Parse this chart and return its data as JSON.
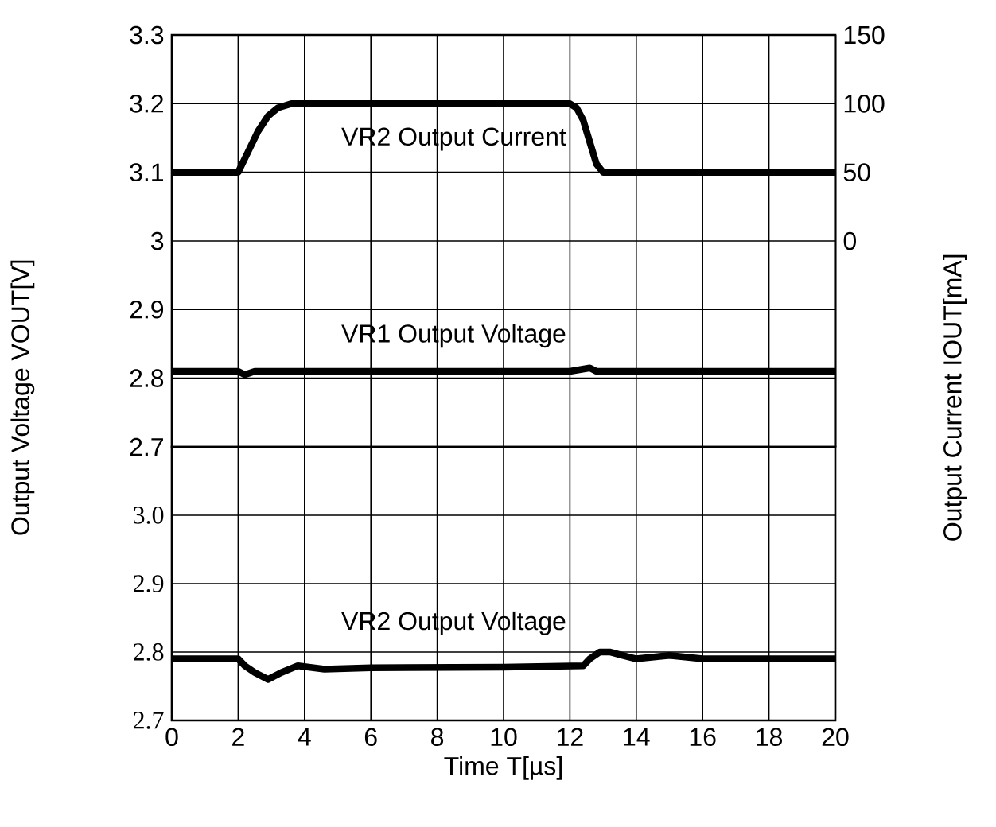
{
  "chart_data": [
    {
      "type": "line",
      "xlim": [
        0,
        20
      ],
      "xticks": [
        0,
        2,
        4,
        6,
        8,
        10,
        12,
        14,
        16,
        18,
        20
      ],
      "ylim": [
        2.7,
        3.3
      ],
      "yticks": [
        3.3,
        3.2,
        3.1,
        3,
        2.9,
        2.8,
        2.7
      ],
      "y2lim": [
        -150,
        150
      ],
      "y2ticks": [
        0,
        50,
        100,
        150
      ],
      "ylabel": "Output Voltage VOUT[V]",
      "y2label": "Output Current IOUT[mA]",
      "grid": true,
      "tick_labels": "y",
      "marker": "none",
      "line_style": "solid",
      "series": [
        {
          "name": "VR2 Output Current",
          "color": "#000000",
          "axis": "y2",
          "x": [
            0,
            2,
            2.3,
            2.6,
            2.9,
            3.2,
            3.6,
            12,
            12.2,
            12.4,
            12.6,
            12.8,
            13,
            20
          ],
          "values": [
            50,
            50,
            65,
            80,
            91,
            97,
            100,
            100,
            97,
            88,
            72,
            56,
            50,
            50
          ]
        },
        {
          "name": "VR1 Output Voltage",
          "color": "#000000",
          "x": [
            0,
            2,
            2.2,
            2.5,
            4,
            12,
            12.6,
            12.8,
            13,
            20
          ],
          "values": [
            2.81,
            2.81,
            2.805,
            2.81,
            2.81,
            2.81,
            2.815,
            2.81,
            2.81,
            2.81
          ]
        }
      ]
    },
    {
      "type": "line",
      "xlim": [
        0,
        20
      ],
      "xticks": [
        0,
        2,
        4,
        6,
        8,
        10,
        12,
        14,
        16,
        18,
        20
      ],
      "ylim": [
        2.7,
        3.1
      ],
      "yticks": [
        {
          "value": 3.0,
          "label": "3.0"
        },
        2.9,
        2.8,
        2.7
      ],
      "xlabel": "Time T[µs]",
      "grid": true,
      "marker": "none",
      "line_style": "solid",
      "series": [
        {
          "name": "VR2 Output Voltage",
          "color": "#000000",
          "x": [
            0,
            2,
            2.2,
            2.5,
            2.9,
            3.3,
            3.8,
            4.6,
            6,
            10,
            12.4,
            12.6,
            12.9,
            13.2,
            13.6,
            14,
            15,
            16,
            20
          ],
          "values": [
            2.79,
            2.79,
            2.78,
            2.77,
            2.76,
            2.77,
            2.78,
            2.775,
            2.777,
            2.778,
            2.78,
            2.79,
            2.8,
            2.8,
            2.795,
            2.79,
            2.795,
            2.79,
            2.79
          ]
        }
      ]
    }
  ]
}
